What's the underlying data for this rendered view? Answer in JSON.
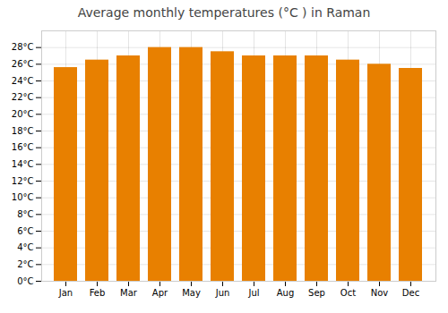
{
  "chart_data": {
    "type": "bar",
    "title": "Average monthly temperatures (°C ) in Raman",
    "categories": [
      "Jan",
      "Feb",
      "Mar",
      "Apr",
      "May",
      "Jun",
      "Jul",
      "Aug",
      "Sep",
      "Oct",
      "Nov",
      "Dec"
    ],
    "values": [
      25.6,
      26.5,
      27.0,
      28.0,
      28.0,
      27.5,
      27.0,
      27.0,
      27.0,
      26.5,
      26.0,
      25.5
    ],
    "color": "#E88000",
    "ylim": [
      0,
      30
    ],
    "yticks": [
      {
        "value": 0,
        "label": "0°C"
      },
      {
        "value": 2,
        "label": "2°C"
      },
      {
        "value": 4,
        "label": "4°C"
      },
      {
        "value": 6,
        "label": "6°C"
      },
      {
        "value": 8,
        "label": "8°C"
      },
      {
        "value": 10,
        "label": "10°C"
      },
      {
        "value": 12,
        "label": "12°C"
      },
      {
        "value": 14,
        "label": "14°C"
      },
      {
        "value": 16,
        "label": "16°C"
      },
      {
        "value": 18,
        "label": "18°C"
      },
      {
        "value": 20,
        "label": "20°C"
      },
      {
        "value": 22,
        "label": "22°C"
      },
      {
        "value": 24,
        "label": "24°C"
      },
      {
        "value": 26,
        "label": "26°C"
      },
      {
        "value": 28,
        "label": "28°C"
      }
    ],
    "grid": true
  }
}
